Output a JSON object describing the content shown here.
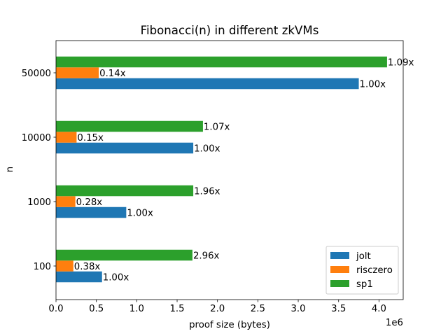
{
  "chart_data": {
    "type": "bar",
    "orientation": "horizontal",
    "title": "Fibonacci(n) in different zkVMs",
    "xlabel": "proof size (bytes)",
    "ylabel": "n",
    "x_multiplier_label": "1e6",
    "x_scale": 1000000,
    "xlim": [
      0,
      4.3
    ],
    "x_ticks": [
      0,
      0.5,
      1.0,
      1.5,
      2.0,
      2.5,
      3.0,
      3.5,
      4.0
    ],
    "x_tick_labels": [
      "0.0",
      "0.5",
      "1.0",
      "1.5",
      "2.0",
      "2.5",
      "3.0",
      "3.5",
      "4.0"
    ],
    "categories": [
      "100",
      "1000",
      "10000",
      "50000"
    ],
    "series": [
      {
        "name": "jolt",
        "color": "#1f77b4",
        "values": [
          0.57,
          0.87,
          1.7,
          3.75
        ],
        "labels": [
          "1.00x",
          "1.00x",
          "1.00x",
          "1.00x"
        ]
      },
      {
        "name": "risczero",
        "color": "#ff7f0e",
        "values": [
          0.215,
          0.24,
          0.255,
          0.53
        ],
        "labels": [
          "0.38x",
          "0.28x",
          "0.15x",
          "0.14x"
        ]
      },
      {
        "name": "sp1",
        "color": "#2ca02c",
        "values": [
          1.69,
          1.7,
          1.82,
          4.1
        ],
        "labels": [
          "2.96x",
          "1.96x",
          "1.07x",
          "1.09x"
        ]
      }
    ],
    "legend_position": "lower right",
    "grid": false
  }
}
